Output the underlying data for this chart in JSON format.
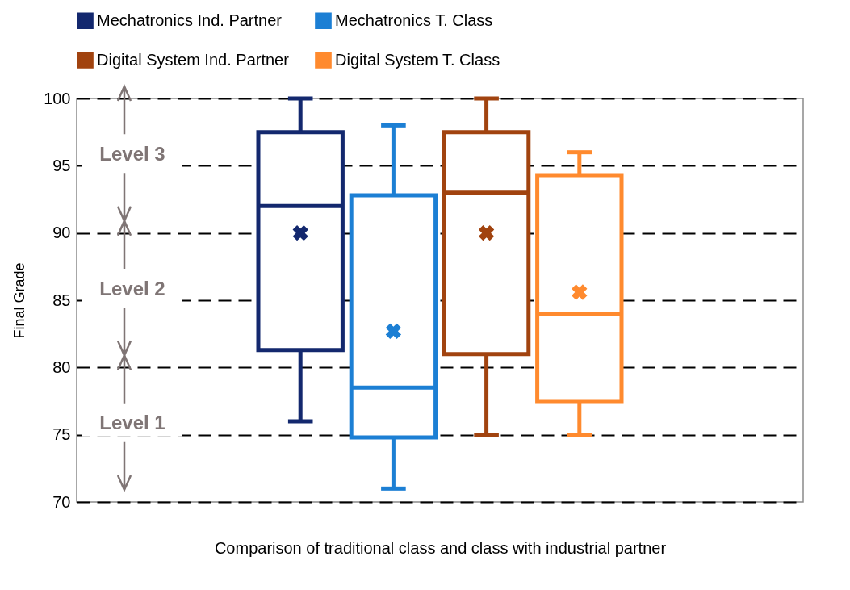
{
  "chart_data": {
    "type": "box",
    "xlabel": "Comparison of traditional class and class with industrial partner",
    "ylabel": "Final Grade",
    "categories": [
      null
    ],
    "ylim": [
      70,
      100
    ],
    "yticks": [
      70,
      75,
      80,
      85,
      90,
      95,
      100
    ],
    "grid": "y",
    "legend": "top",
    "annotations": [
      "Level 3",
      "Level 2",
      "Level 1"
    ],
    "series": [
      {
        "name": "Mechatronics Ind. Partner",
        "color": "#13286e",
        "boxes": [
          {
            "low": 76,
            "q1": 81.3,
            "median": 92,
            "q3": 97.5,
            "high": 100,
            "mean": 90
          }
        ]
      },
      {
        "name": "Mechatronics T. Class",
        "color": "#1c7fd4",
        "boxes": [
          {
            "low": 71,
            "q1": 74.8,
            "median": 78.5,
            "q3": 92.8,
            "high": 98,
            "mean": 82.7
          }
        ]
      },
      {
        "name": "Digital System Ind. Partner",
        "color": "#a1430f",
        "boxes": [
          {
            "low": 75,
            "q1": 81,
            "median": 93,
            "q3": 97.5,
            "high": 100,
            "mean": 90
          }
        ]
      },
      {
        "name": "Digital System T. Class",
        "color": "#ff8a2e",
        "boxes": [
          {
            "low": 75,
            "q1": 77.5,
            "median": 84,
            "q3": 94.3,
            "high": 96,
            "mean": 85.6
          }
        ]
      }
    ]
  }
}
